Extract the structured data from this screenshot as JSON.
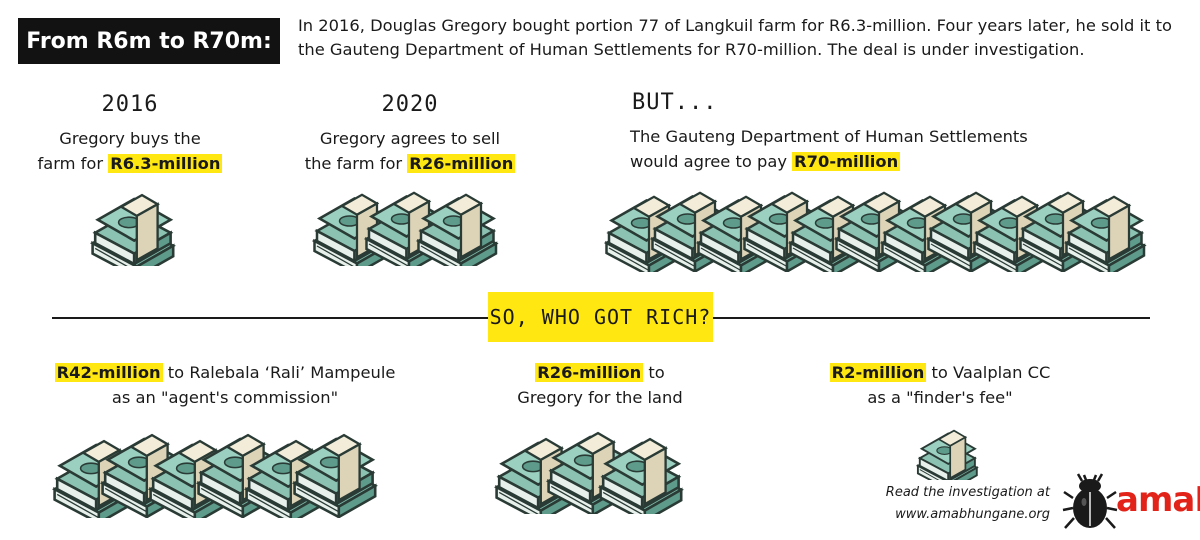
{
  "header": {
    "title": "From R6m to R70m:",
    "intro": "In 2016, Douglas Gregory bought portion 77 of Langkuil farm for R6.3-million. Four years later, he sold it to the Gauteng Department of Human Settlements for R70-million. The deal is under investigation."
  },
  "steps": [
    {
      "heading": "2016",
      "line1": "Gregory buys the",
      "line2_pre": "farm for ",
      "amount": "R6.3-million",
      "money_stacks": 1
    },
    {
      "heading": "2020",
      "line1": "Gregory agrees to sell",
      "line2_pre": "the farm for ",
      "amount": "R26-million",
      "money_stacks": 3
    },
    {
      "heading": "BUT...",
      "line1": "The Gauteng Department of Human Settlements",
      "line2_pre": "would agree to pay ",
      "amount": "R70-million",
      "money_stacks": 11
    }
  ],
  "divider": {
    "label": "SO, WHO GOT RICH?"
  },
  "recipients": [
    {
      "amount": "R42-million",
      "line1_post": " to Ralebala ‘Rali’ Mampeule",
      "line2": "as an \"agent's commission\"",
      "money_stacks": 6
    },
    {
      "amount": "R26-million",
      "line1_post": " to",
      "line2": "Gregory for the land",
      "money_stacks": 3
    },
    {
      "amount": "R2-million",
      "line1_post": " to Vaalplan CC",
      "line2": "as a \"finder's fee\"",
      "money_stacks": 1
    }
  ],
  "footer": {
    "read_line1": "Read the investigation at",
    "read_line2": "www.amabhungane.org",
    "brand": "amaB",
    "logo_icon": "dung-beetle-icon"
  },
  "colors": {
    "highlight": "#ffe712",
    "title_bg": "#121212",
    "cash_green": "#7fb8a8",
    "cash_dark": "#2a3b36",
    "brand_red": "#e2231a"
  }
}
